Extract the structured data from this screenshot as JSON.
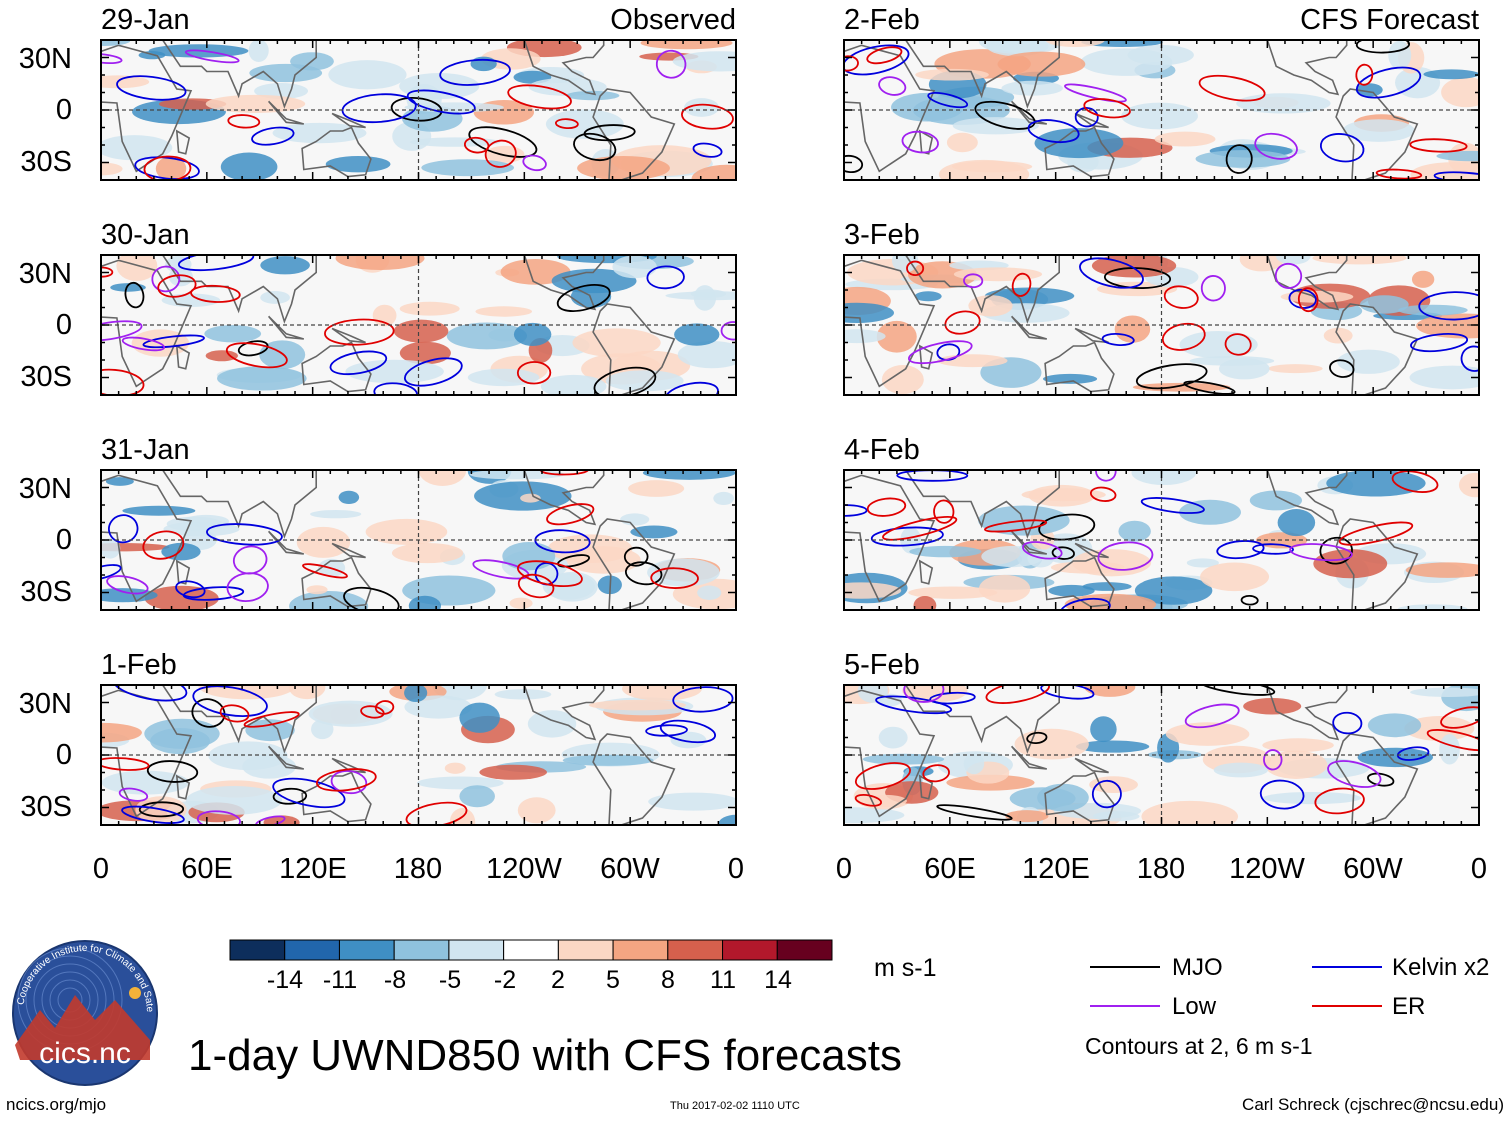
{
  "chart_data": {
    "type": "heatmap",
    "title": "1-day UWND850 with CFS forecasts",
    "observed_label": "Observed",
    "forecast_label": "CFS Forecast",
    "units": "m s-1",
    "observed_panels": [
      "29-Jan",
      "30-Jan",
      "31-Jan",
      "1-Feb"
    ],
    "forecast_panels": [
      "2-Feb",
      "3-Feb",
      "4-Feb",
      "5-Feb"
    ],
    "lat_ticks": [
      "30N",
      "0",
      "30S"
    ],
    "lat_values": [
      30,
      0,
      -30
    ],
    "lat_range": [
      -40,
      40
    ],
    "lon_ticks": [
      "0",
      "60E",
      "120E",
      "180",
      "120W",
      "60W",
      "0"
    ],
    "lon_values": [
      0,
      60,
      120,
      180,
      240,
      300,
      360
    ],
    "lon_range": [
      0,
      360
    ],
    "colorbar": {
      "levels": [
        "-14",
        "-11",
        "-8",
        "-5",
        "-2",
        "2",
        "5",
        "8",
        "11",
        "14"
      ],
      "colors": [
        "#0d2e5c",
        "#2166ac",
        "#3f8fc4",
        "#8fc2de",
        "#d1e5f0",
        "#ffffff",
        "#fbd7c4",
        "#f4a582",
        "#d6604d",
        "#b2182b",
        "#67001f"
      ]
    },
    "legend": [
      {
        "label": "MJO",
        "color": "#000000"
      },
      {
        "label": "Kelvin x2",
        "color": "#0000dd"
      },
      {
        "label": "Low",
        "color": "#a020f0"
      },
      {
        "label": "ER",
        "color": "#e00000"
      }
    ],
    "contour_note": "Contours at 2, 6 m s-1"
  },
  "footer": {
    "url": "ncics.org/mjo",
    "timestamp": "Thu 2017-02-02 1110 UTC",
    "author": "Carl Schreck (cjschrec@ncsu.edu)",
    "logo_text": "cics.nc",
    "logo_ring_text": "Cooperative Institute for Climate and Satellites"
  }
}
